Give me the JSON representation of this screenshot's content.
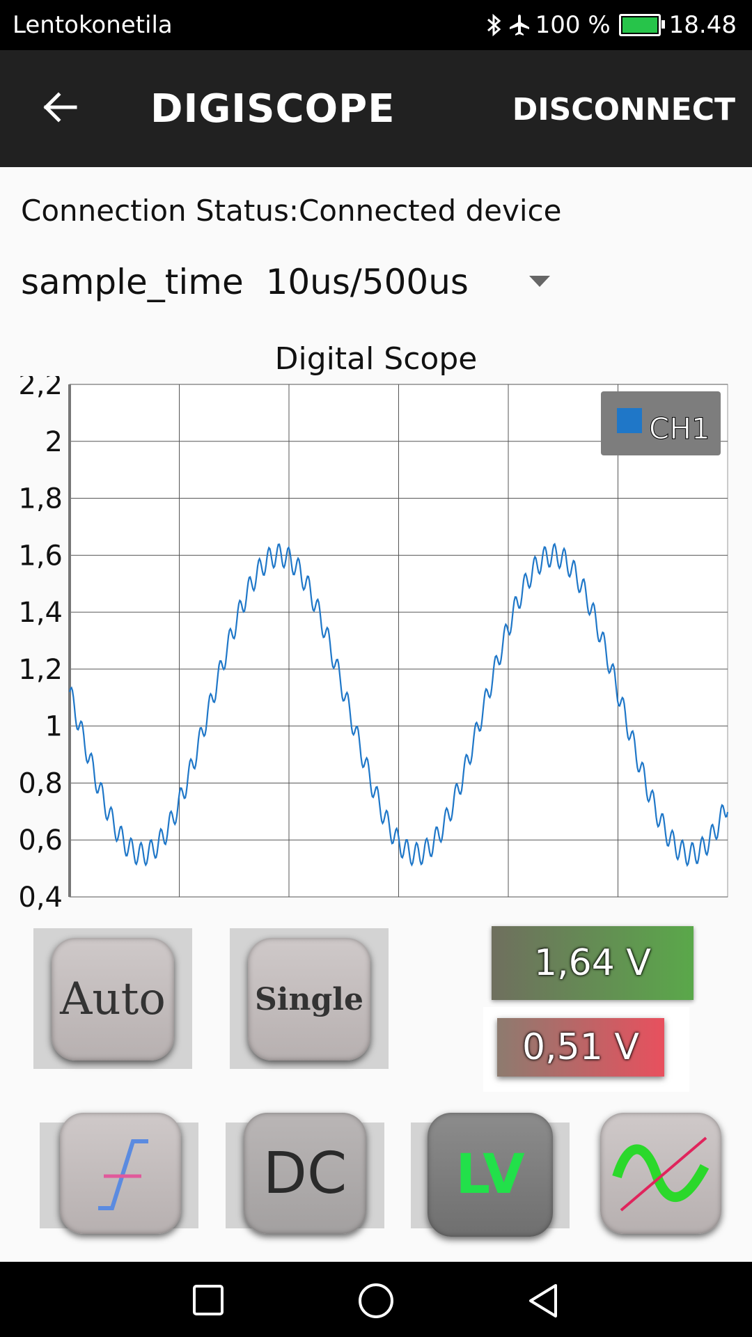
{
  "status_bar": {
    "carrier": "Lentokonetila",
    "battery": "100 %",
    "time": "18.48",
    "colors": {
      "battery_fill": "#27c44a"
    }
  },
  "app_bar": {
    "title": "DIGISCOPE",
    "action": "DISCONNECT",
    "icons": [
      "arrow-back-icon"
    ]
  },
  "connection": {
    "status": "Connection Status:Connected device"
  },
  "sample_time": {
    "label": "sample_time",
    "value": "10us/500us"
  },
  "chart_data": {
    "type": "line",
    "title": "Digital Scope",
    "ylim": [
      0.4,
      2.2
    ],
    "yticks": [
      "2,2",
      "2",
      "1,8",
      "1,6",
      "1,4",
      "1,2",
      "1",
      "0,8",
      "0,6",
      "0,4"
    ],
    "x_divisions": 6,
    "legend": {
      "label": "CH1",
      "position": "top-right",
      "color": "#1f77c8"
    },
    "series": [
      {
        "name": "CH1",
        "shape": "sine",
        "min": 0.55,
        "max": 1.6,
        "cycles": 2.4,
        "start_value": 1.12,
        "ripple": 0.04
      }
    ]
  },
  "controls": {
    "auto_label": "Auto",
    "single_label": "Single",
    "max_voltage": "1,64 V",
    "min_voltage": "0,51 V",
    "dc_label": "DC",
    "lv_label": "LV",
    "colors": {
      "max_bg": "#5aa84a",
      "min_bg": "#e8505e",
      "lv_text": "#22e04a",
      "wave_green": "#2bd82b"
    }
  },
  "nav_bar": {
    "icons": [
      "recent-apps-icon",
      "home-icon",
      "back-icon"
    ]
  }
}
